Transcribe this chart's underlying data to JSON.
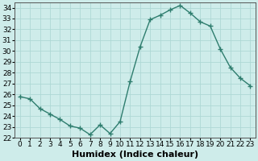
{
  "xlabel": "Humidex (Indice chaleur)",
  "x": [
    0,
    1,
    2,
    3,
    4,
    5,
    6,
    7,
    8,
    9,
    10,
    11,
    12,
    13,
    14,
    15,
    16,
    17,
    18,
    19,
    20,
    21,
    22,
    23
  ],
  "y": [
    25.8,
    25.6,
    24.7,
    24.2,
    23.7,
    23.1,
    22.9,
    22.3,
    23.2,
    22.4,
    23.5,
    27.2,
    30.4,
    32.9,
    33.3,
    33.8,
    34.2,
    33.5,
    32.7,
    32.3,
    30.2,
    28.5,
    27.5,
    26.8
  ],
  "line_color": "#2e7d6e",
  "marker": "+",
  "marker_size": 4,
  "line_width": 1.0,
  "ylim": [
    22,
    34.5
  ],
  "yticks": [
    22,
    23,
    24,
    25,
    26,
    27,
    28,
    29,
    30,
    31,
    32,
    33,
    34
  ],
  "xlim": [
    -0.5,
    23.5
  ],
  "bg_color": "#ceecea",
  "grid_color": "#aed8d5",
  "xlabel_fontsize": 8,
  "tick_fontsize": 6.5
}
